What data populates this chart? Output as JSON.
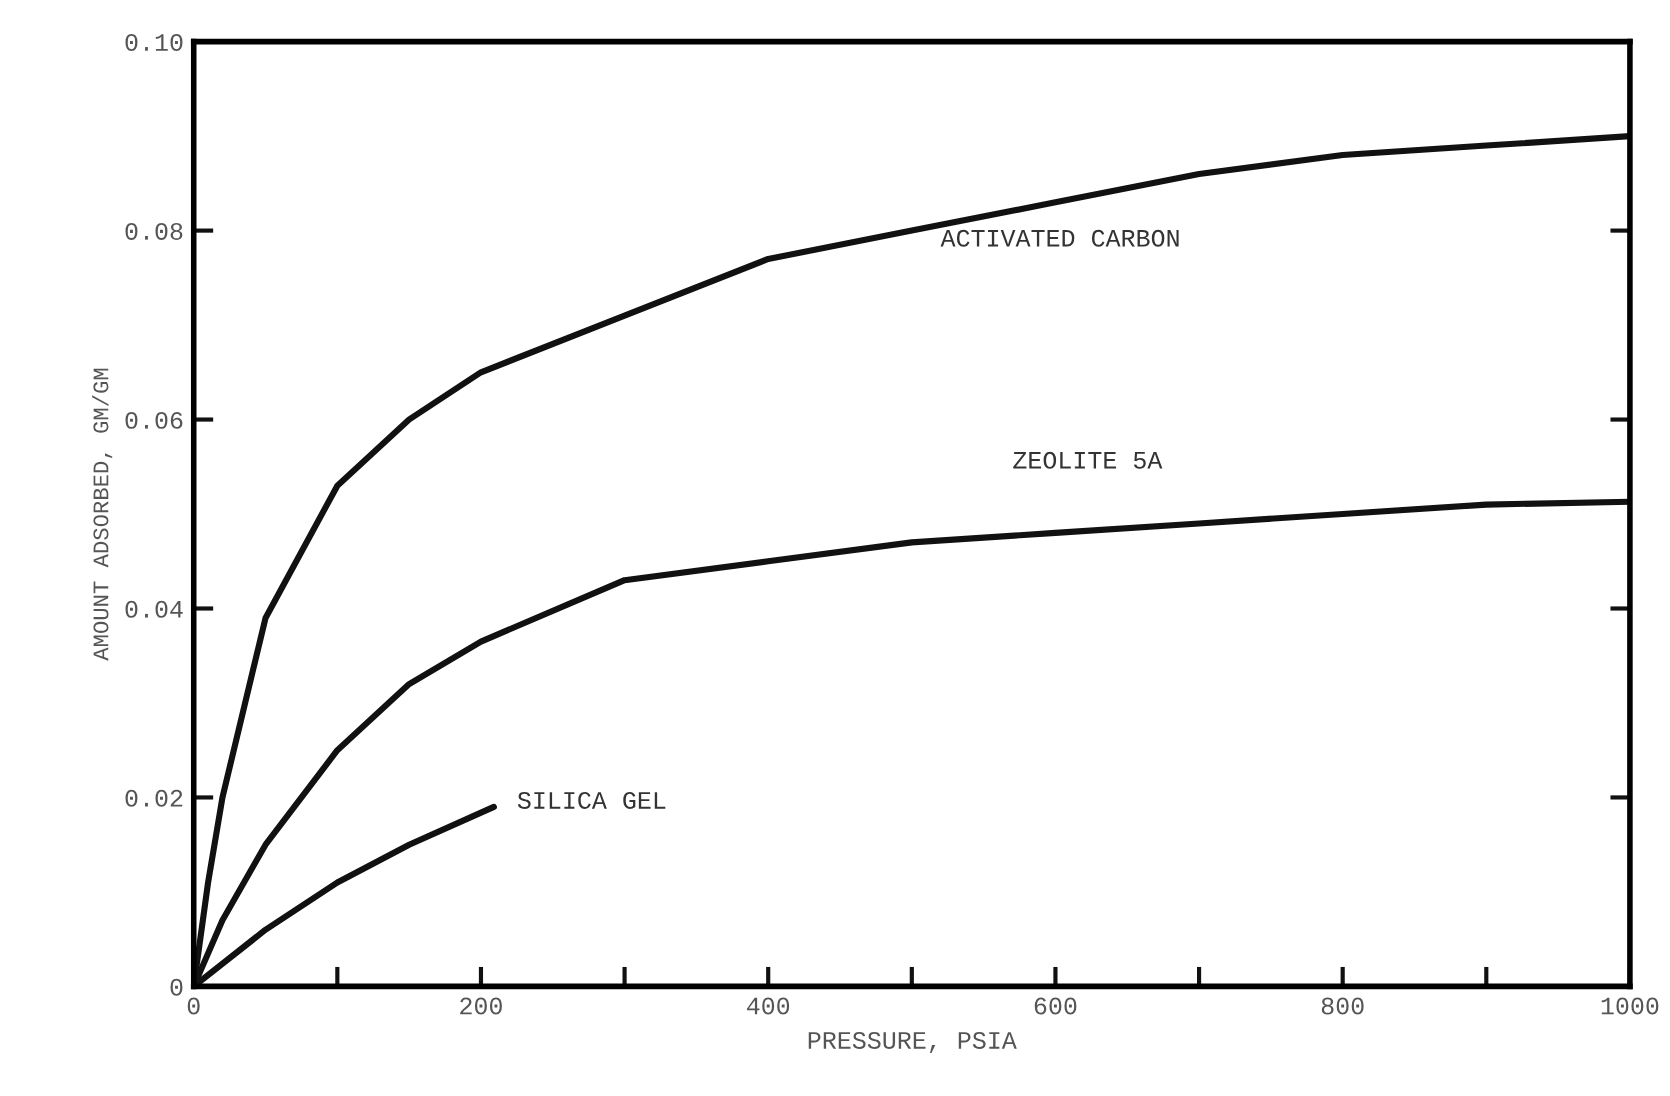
{
  "chart_data": {
    "type": "line",
    "xlabel": "PRESSURE, PSIA",
    "ylabel": "AMOUNT ADSORBED, GM/GM",
    "xlim": [
      0,
      1000
    ],
    "ylim": [
      0,
      0.1
    ],
    "xticks": [
      0,
      {
        "value": 100,
        "label": null
      },
      200,
      {
        "value": 300,
        "label": null
      },
      400,
      {
        "value": 500,
        "label": null
      },
      600,
      {
        "value": 700,
        "label": null
      },
      800,
      {
        "value": 900,
        "label": null
      },
      1000
    ],
    "yticks": [
      0,
      0.02,
      0.04,
      0.06,
      0.08,
      {
        "value": 0.1,
        "label": "0.10"
      }
    ],
    "grid": false,
    "legend": false,
    "marker": "none",
    "line_style": "solid",
    "series": [
      {
        "name": "ACTIVATED CARBON",
        "color": "#111111",
        "x": [
          0,
          10,
          20,
          50,
          100,
          150,
          200,
          300,
          400,
          500,
          600,
          700,
          800,
          900,
          1000
        ],
        "values": [
          0,
          0.011,
          0.02,
          0.039,
          0.053,
          0.06,
          0.065,
          0.071,
          0.077,
          0.08,
          0.083,
          0.086,
          0.088,
          0.089,
          0.09
        ]
      },
      {
        "name": "ZEOLITE 5A",
        "color": "#111111",
        "x": [
          0,
          20,
          50,
          100,
          150,
          200,
          300,
          400,
          500,
          600,
          700,
          800,
          900,
          1000
        ],
        "values": [
          0,
          0.007,
          0.015,
          0.025,
          0.032,
          0.0365,
          0.043,
          0.045,
          0.047,
          0.048,
          0.049,
          0.05,
          0.051,
          0.0513
        ]
      },
      {
        "name": "SILICA GEL",
        "color": "#111111",
        "x": [
          0,
          50,
          100,
          150,
          209
        ],
        "values": [
          0,
          0.006,
          0.011,
          0.015,
          0.019
        ]
      }
    ]
  }
}
